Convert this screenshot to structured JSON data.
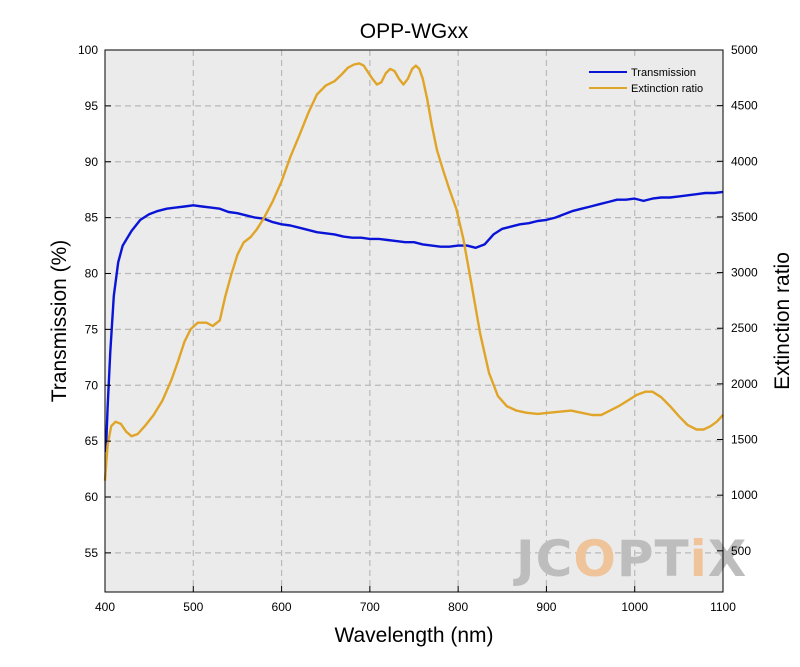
{
  "chart_data": {
    "type": "line",
    "title": "OPP-WGxx",
    "xlabel": "Wavelength (nm)",
    "ylabel": "Transmission (%)",
    "y2label": "Extinction ratio",
    "xlim": [
      400,
      1100
    ],
    "ylim": [
      51.5,
      100
    ],
    "y2lim": [
      130,
      5000
    ],
    "xticks": [
      400,
      500,
      600,
      700,
      800,
      900,
      1000,
      1100
    ],
    "yticks": [
      55,
      60,
      65,
      70,
      75,
      80,
      85,
      90,
      95,
      100
    ],
    "y2ticks": [
      500,
      1000,
      1500,
      2000,
      2500,
      3000,
      3500,
      4000,
      4500,
      5000
    ],
    "grid": true,
    "legend_position": "top-right",
    "series": [
      {
        "name": "Transmission",
        "axis": "left",
        "color": "#0a14d6",
        "x": [
          401,
          403,
          406,
          410,
          415,
          420,
          430,
          440,
          450,
          460,
          470,
          480,
          490,
          500,
          510,
          520,
          530,
          540,
          550,
          560,
          570,
          580,
          590,
          600,
          610,
          620,
          630,
          640,
          650,
          660,
          670,
          680,
          690,
          700,
          710,
          720,
          730,
          740,
          750,
          760,
          770,
          780,
          790,
          800,
          810,
          820,
          830,
          840,
          850,
          860,
          870,
          880,
          890,
          900,
          910,
          920,
          930,
          940,
          950,
          960,
          970,
          980,
          990,
          1000,
          1010,
          1020,
          1030,
          1040,
          1050,
          1060,
          1070,
          1080,
          1090,
          1100
        ],
        "y": [
          64,
          68,
          73,
          78,
          81,
          82.5,
          83.8,
          84.8,
          85.3,
          85.6,
          85.8,
          85.9,
          86,
          86.1,
          86,
          85.9,
          85.8,
          85.5,
          85.4,
          85.2,
          85,
          84.9,
          84.6,
          84.4,
          84.3,
          84.1,
          83.9,
          83.7,
          83.6,
          83.5,
          83.3,
          83.2,
          83.2,
          83.1,
          83.1,
          83,
          82.9,
          82.8,
          82.8,
          82.6,
          82.5,
          82.4,
          82.4,
          82.5,
          82.5,
          82.3,
          82.6,
          83.5,
          84,
          84.2,
          84.4,
          84.5,
          84.7,
          84.8,
          85,
          85.3,
          85.6,
          85.8,
          86,
          86.2,
          86.4,
          86.6,
          86.6,
          86.7,
          86.5,
          86.7,
          86.8,
          86.8,
          86.9,
          87,
          87.1,
          87.2,
          87.2,
          87.3
        ]
      },
      {
        "name": "Extinction ratio",
        "axis": "right",
        "color": "#e0a528",
        "x": [
          400,
          403,
          407,
          412,
          418,
          424,
          430,
          437,
          445,
          455,
          465,
          475,
          483,
          490,
          497,
          505,
          515,
          522,
          530,
          536,
          543,
          550,
          557,
          565,
          572,
          580,
          590,
          600,
          610,
          620,
          630,
          640,
          650,
          660,
          668,
          675,
          682,
          688,
          693,
          698,
          703,
          708,
          713,
          718,
          723,
          728,
          733,
          738,
          743,
          748,
          752,
          756,
          760,
          765,
          770,
          776,
          783,
          790,
          798,
          806,
          815,
          825,
          835,
          845,
          855,
          866,
          878,
          890,
          902,
          915,
          928,
          940,
          952,
          962,
          972,
          982,
          992,
          1002,
          1012,
          1020,
          1030,
          1040,
          1050,
          1060,
          1070,
          1078,
          1086,
          1093,
          1100
        ],
        "y": [
          1130,
          1450,
          1620,
          1660,
          1640,
          1570,
          1530,
          1550,
          1620,
          1720,
          1850,
          2030,
          2210,
          2380,
          2490,
          2550,
          2550,
          2520,
          2570,
          2780,
          2980,
          3160,
          3270,
          3320,
          3390,
          3490,
          3640,
          3820,
          4040,
          4230,
          4430,
          4600,
          4680,
          4720,
          4780,
          4840,
          4870,
          4880,
          4860,
          4800,
          4740,
          4690,
          4710,
          4790,
          4830,
          4810,
          4740,
          4690,
          4740,
          4830,
          4860,
          4830,
          4740,
          4560,
          4330,
          4100,
          3920,
          3750,
          3570,
          3300,
          2900,
          2450,
          2100,
          1890,
          1800,
          1760,
          1740,
          1730,
          1740,
          1750,
          1760,
          1740,
          1720,
          1720,
          1760,
          1800,
          1850,
          1900,
          1930,
          1930,
          1880,
          1800,
          1710,
          1630,
          1590,
          1590,
          1620,
          1660,
          1720
        ]
      }
    ]
  },
  "watermark": {
    "part1": "JC",
    "part2": "O",
    "part3": "PT",
    "part4": "i",
    "part5": "X"
  }
}
